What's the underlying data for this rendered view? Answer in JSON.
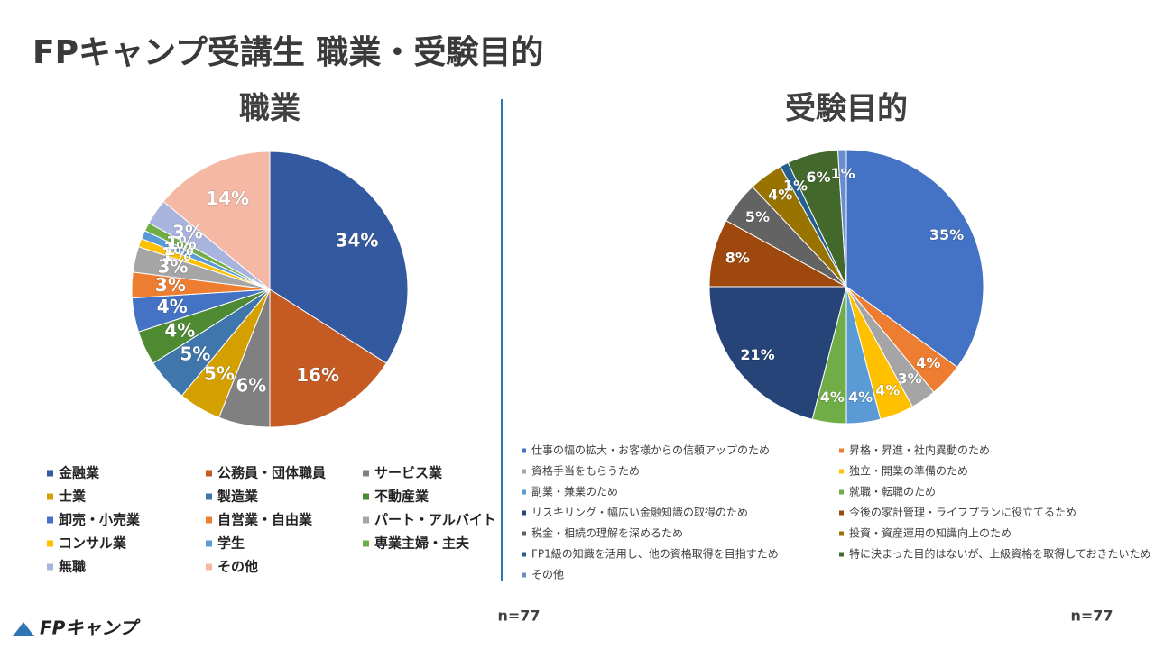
{
  "title": "FPキャンプ受講生 職業・受験目的",
  "logo": "FPキャンプ",
  "chart_data": [
    {
      "type": "pie",
      "title": "職業",
      "note": "n=77",
      "categories": [
        "金融業",
        "公務員・団体職員",
        "サービス業",
        "士業",
        "製造業",
        "不動産業",
        "卸売・小売業",
        "自営業・自由業",
        "パート・アルバイト",
        "コンサル業",
        "学生",
        "専業主婦・主夫",
        "無職",
        "その他"
      ],
      "values": [
        34,
        16,
        6,
        5,
        5,
        4,
        4,
        3,
        3,
        1,
        1,
        1,
        3,
        14
      ],
      "value_labels": [
        "34%",
        "16%",
        "6%",
        "5%",
        "5%",
        "4%",
        "4%",
        "3%",
        "3%",
        "1%",
        "1%",
        "1%",
        "3%",
        "14%"
      ],
      "colors": [
        "#335aa0",
        "#c55a22",
        "#808080",
        "#d4a000",
        "#3f77ad",
        "#4d8a32",
        "#4472c4",
        "#ed7d31",
        "#a5a5a5",
        "#ffc000",
        "#5b9bd5",
        "#70ad47",
        "#a9b4de",
        "#f4b8a4"
      ]
    },
    {
      "type": "pie",
      "title": "受験目的",
      "note": "n=77",
      "categories": [
        "仕事の幅の拡大・お客様からの信頼アップのため",
        "昇格・昇進・社内異動のため",
        "資格手当をもらうため",
        "独立・開業の準備のため",
        "副業・兼業のため",
        "就職・転職のため",
        "リスキリング・幅広い金融知識の取得のため",
        "今後の家計管理・ライフプランに役立てるため",
        "税金・相続の理解を深めるため",
        "投資・資産運用の知識向上のため",
        "FP1級の知識を活用し、他の資格取得を目指すため",
        "特に決まった目的はないが、上級資格を取得しておきたいため",
        "その他"
      ],
      "values": [
        35,
        4,
        3,
        4,
        4,
        4,
        21,
        8,
        5,
        4,
        1,
        6,
        1
      ],
      "value_labels": [
        "35%",
        "4%",
        "3%",
        "4%",
        "4%",
        "4%",
        "21%",
        "8%",
        "5%",
        "4%",
        "1%",
        "6%",
        "1%"
      ],
      "colors": [
        "#4472c4",
        "#ed7d31",
        "#a5a5a5",
        "#ffc000",
        "#5b9bd5",
        "#70ad47",
        "#264478",
        "#9e480e",
        "#636363",
        "#997300",
        "#255e91",
        "#43682b",
        "#698ed0"
      ]
    }
  ]
}
